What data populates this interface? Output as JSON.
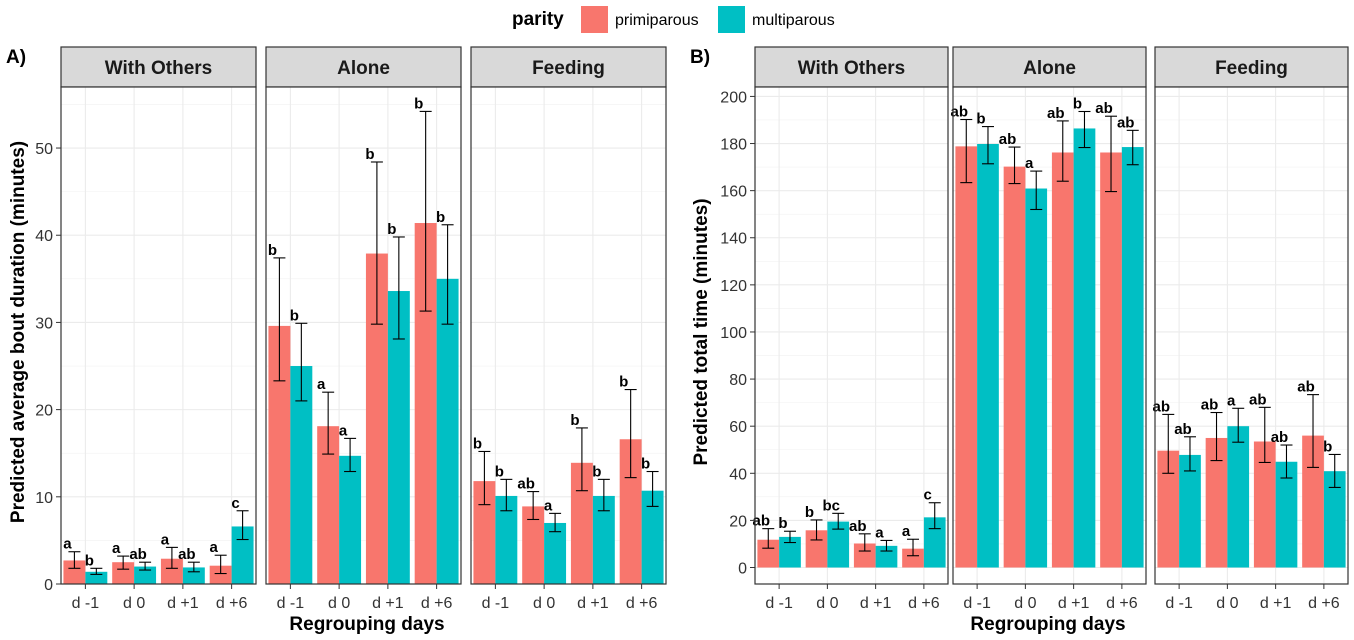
{
  "legend": {
    "title": "parity",
    "items": [
      {
        "label": "primiparous",
        "color": "#F8766D"
      },
      {
        "label": "multiparous",
        "color": "#00BFC4"
      }
    ]
  },
  "chart_data": [
    {
      "type": "bar",
      "panel_label": "A)",
      "ylabel": "Predicted average bout duration (minutes)",
      "xlabel": "Regrouping days",
      "ylim": [
        0,
        57
      ],
      "yticks": [
        0,
        10,
        20,
        30,
        40,
        50
      ],
      "categories": [
        "d -1",
        "d 0",
        "d +1",
        "d +6"
      ],
      "facets": [
        {
          "title": "With Others",
          "series": [
            {
              "name": "primiparous",
              "values": [
                2.7,
                2.5,
                2.9,
                2.1
              ],
              "lower": [
                1.8,
                1.7,
                1.8,
                1.2
              ],
              "upper": [
                3.7,
                3.2,
                4.2,
                3.3
              ],
              "letters": [
                "a",
                "a",
                "a",
                "a"
              ]
            },
            {
              "name": "multiparous",
              "values": [
                1.4,
                2.0,
                1.9,
                6.6
              ],
              "lower": [
                1.1,
                1.6,
                1.4,
                5.1
              ],
              "upper": [
                1.8,
                2.5,
                2.5,
                8.4
              ],
              "letters": [
                "b",
                "ab",
                "ab",
                "c"
              ]
            }
          ]
        },
        {
          "title": "Alone",
          "series": [
            {
              "name": "primiparous",
              "values": [
                29.6,
                18.1,
                37.9,
                41.4
              ],
              "lower": [
                23.3,
                14.9,
                29.8,
                31.3
              ],
              "upper": [
                37.4,
                22.0,
                48.4,
                54.2
              ],
              "letters": [
                "b",
                "a",
                "b",
                "b"
              ]
            },
            {
              "name": "multiparous",
              "values": [
                25.0,
                14.7,
                33.6,
                35.0
              ],
              "lower": [
                21.0,
                12.9,
                28.1,
                29.8
              ],
              "upper": [
                29.9,
                16.7,
                39.8,
                41.2
              ],
              "letters": [
                "b",
                "a",
                "b",
                "b"
              ]
            }
          ]
        },
        {
          "title": "Feeding",
          "series": [
            {
              "name": "primiparous",
              "values": [
                11.8,
                8.9,
                13.9,
                16.6
              ],
              "lower": [
                9.1,
                7.4,
                10.7,
                12.2
              ],
              "upper": [
                15.2,
                10.6,
                17.9,
                22.3
              ],
              "letters": [
                "b",
                "ab",
                "b",
                "b"
              ]
            },
            {
              "name": "multiparous",
              "values": [
                10.1,
                7.0,
                10.1,
                10.7
              ],
              "lower": [
                8.4,
                6.0,
                8.4,
                8.9
              ],
              "upper": [
                12.0,
                8.1,
                12.0,
                12.9
              ],
              "letters": [
                "b",
                "a",
                "b",
                "b"
              ]
            }
          ]
        }
      ]
    },
    {
      "type": "bar",
      "panel_label": "B)",
      "ylabel": "Predicted total time (minutes)",
      "xlabel": "Regrouping days",
      "ylim": [
        -7,
        204
      ],
      "yticks": [
        0,
        20,
        40,
        60,
        80,
        100,
        120,
        140,
        160,
        180,
        200
      ],
      "categories": [
        "d -1",
        "d 0",
        "d +1",
        "d +6"
      ],
      "facets": [
        {
          "title": "With Others",
          "series": [
            {
              "name": "primiparous",
              "values": [
                11.8,
                15.8,
                10.2,
                8.0
              ],
              "lower": [
                8.2,
                11.7,
                7.0,
                5.0
              ],
              "upper": [
                16.5,
                20.2,
                14.3,
                12.0
              ],
              "letters": [
                "ab",
                "b",
                "ab",
                "a"
              ]
            },
            {
              "name": "multiparous",
              "values": [
                13.0,
                19.5,
                9.2,
                21.3
              ],
              "lower": [
                10.6,
                16.3,
                7.0,
                16.5
              ],
              "upper": [
                15.4,
                23.0,
                11.5,
                27.5
              ],
              "letters": [
                "b",
                "bc",
                "a",
                "c"
              ]
            }
          ]
        },
        {
          "title": "Alone",
          "series": [
            {
              "name": "primiparous",
              "values": [
                178.8,
                170.2,
                176.2,
                176.2
              ],
              "lower": [
                163.4,
                163.0,
                164.0,
                159.6
              ],
              "upper": [
                190.2,
                178.5,
                189.6,
                191.6
              ],
              "letters": [
                "ab",
                "ab",
                "ab",
                "ab"
              ]
            },
            {
              "name": "multiparous",
              "values": [
                179.8,
                160.9,
                186.4,
                178.5
              ],
              "lower": [
                171.4,
                152.0,
                178.3,
                171.0
              ],
              "upper": [
                187.2,
                168.3,
                193.6,
                185.6
              ],
              "letters": [
                "b",
                "a",
                "b",
                "ab"
              ]
            }
          ]
        },
        {
          "title": "Feeding",
          "series": [
            {
              "name": "primiparous",
              "values": [
                49.6,
                55.0,
                53.5,
                56.0
              ],
              "lower": [
                40.0,
                45.4,
                44.6,
                42.5
              ],
              "upper": [
                65.0,
                65.8,
                68.0,
                73.4
              ],
              "letters": [
                "ab",
                "ab",
                "ab",
                "ab"
              ]
            },
            {
              "name": "multiparous",
              "values": [
                47.8,
                60.0,
                44.9,
                40.9
              ],
              "lower": [
                41.0,
                53.2,
                38.0,
                34.0
              ],
              "upper": [
                55.5,
                67.6,
                52.0,
                48.0
              ],
              "letters": [
                "ab",
                "a",
                "ab",
                "b"
              ]
            }
          ]
        }
      ]
    }
  ]
}
